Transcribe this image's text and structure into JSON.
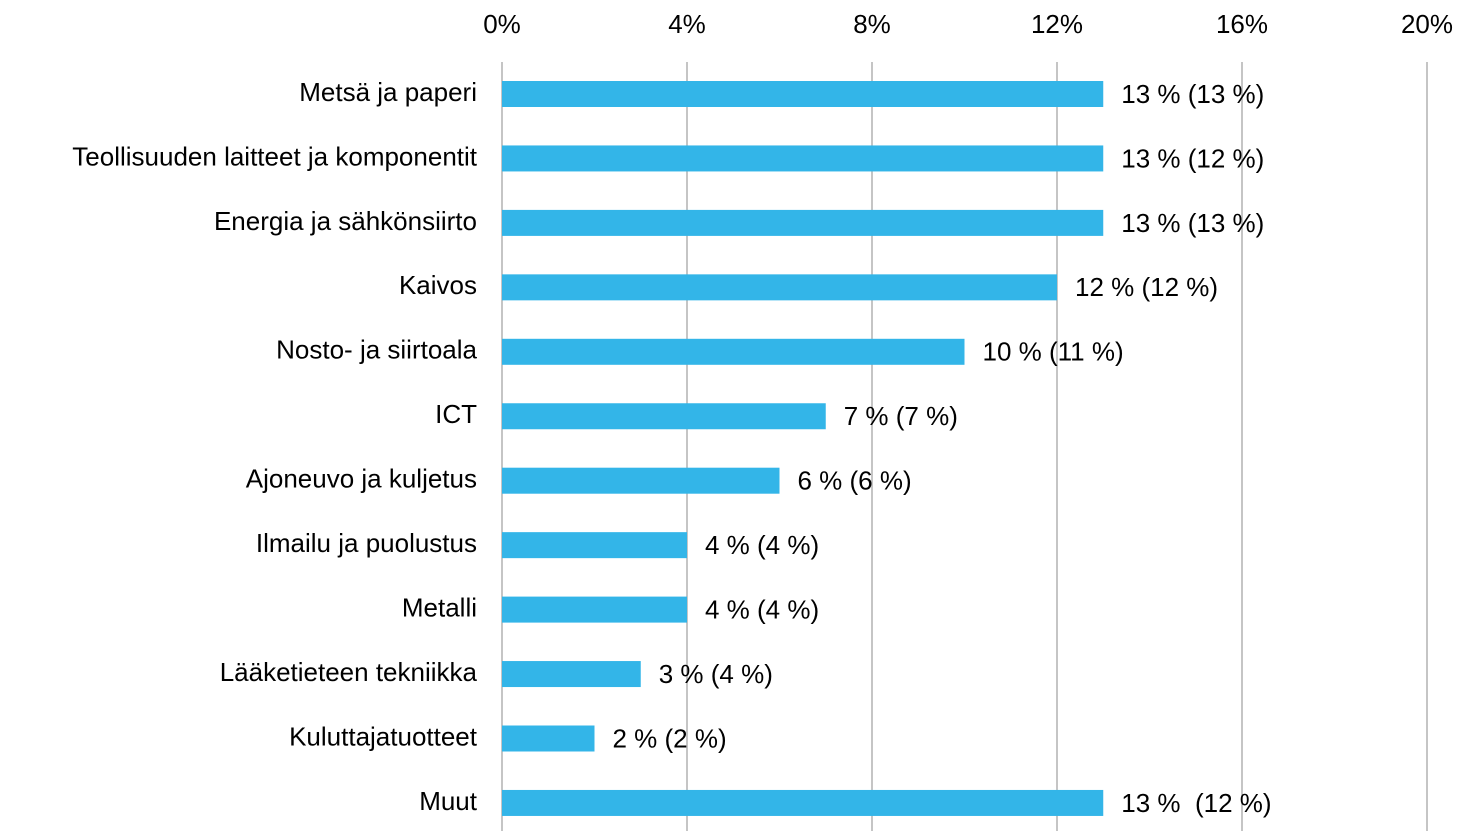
{
  "chart_data": {
    "type": "barh",
    "categories": [
      "Metsä ja paperi",
      "Teollisuuden laitteet ja komponentit",
      "Energia ja sähkönsiirto",
      "Kaivos",
      "Nosto- ja siirtoala",
      "ICT",
      "Ajoneuvo ja kuljetus",
      "Ilmailu ja puolustus",
      "Metalli",
      "Lääketieteen tekniikka",
      "Kuluttajatuotteet",
      "Muut"
    ],
    "values": [
      13,
      13,
      13,
      12,
      10,
      7,
      6,
      4,
      4,
      3,
      2,
      13
    ],
    "value_labels": [
      "13 % (13 %)",
      "13 % (12 %)",
      "13 % (13 %)",
      "12 % (12 %)",
      "10 % (11 %)",
      "7 % (7 %)",
      "6 % (6 %)",
      "4 % (4 %)",
      "4 % (4 %)",
      "3 % (4 %)",
      "2 % (2 %)",
      "13 %  (12 %)"
    ],
    "color": "#33b5e8",
    "xlim": [
      0,
      20
    ],
    "xticks": [
      {
        "value": 0,
        "label": "0%"
      },
      {
        "value": 4,
        "label": "4%"
      },
      {
        "value": 8,
        "label": "8%"
      },
      {
        "value": 12,
        "label": "12%"
      },
      {
        "value": 16,
        "label": "16%"
      },
      {
        "value": 20,
        "label": "20%"
      }
    ],
    "grid": true
  }
}
